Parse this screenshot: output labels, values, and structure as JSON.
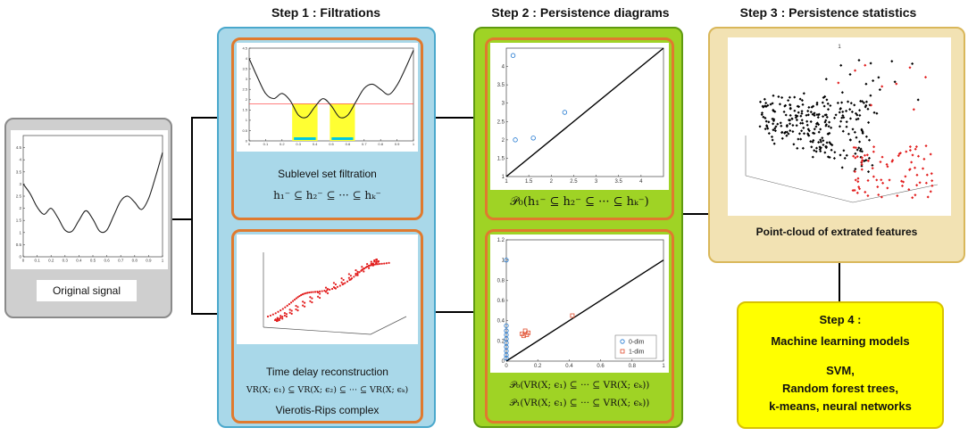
{
  "steps": {
    "step1_title": "Step 1 : Filtrations",
    "step2_title": "Step 2 : Persistence diagrams",
    "step3_title": "Step 3 : Persistence statistics"
  },
  "original": {
    "label": "Original signal"
  },
  "sublevel": {
    "label": "Sublevel set filtration",
    "formula": "h₁⁻ ⊆ h₂⁻ ⊆ ··· ⊆ hₖ⁻"
  },
  "timedelay": {
    "label": "Time delay reconstruction",
    "formula": "VR(X; ϵ₁) ⊆ VR(X; ϵ₂) ⊆ ··· ⊆ VR(X; ϵₖ)",
    "sublabel": "Vierotis-Rips complex"
  },
  "pd0": {
    "formula": "𝒫₀(h₁⁻ ⊆ h₂⁻ ⊆ ··· ⊆ hₖ⁻)"
  },
  "pd1": {
    "formula0": "𝒫₀(VR(X; ϵ₁) ⊆ ··· ⊆ VR(X; ϵₖ))",
    "formula1": "𝒫₁(VR(X; ϵ₁) ⊆ ··· ⊆ VR(X; ϵₖ))",
    "legend": [
      "0-dim",
      "1-dim"
    ]
  },
  "pointcloud": {
    "label": "Point-cloud of extrated features",
    "plot_title": "1"
  },
  "step4": {
    "title": "Step 4 :",
    "subtitle": "Machine learning models",
    "lines": [
      "SVM,",
      "Random forest trees,",
      "k-means, neural networks"
    ]
  },
  "colors": {
    "gray_panel": "#cfcfcf",
    "blue_panel": "#a9d8e9",
    "green_panel": "#9fd325",
    "tan_panel": "#f2e2b3",
    "yellow_panel": "#ffff00",
    "orange_border": "#e07a2e",
    "highlight_yellow": "#ffff33"
  },
  "chart_data": [
    {
      "type": "line",
      "name": "original-signal",
      "xlim": [
        0,
        1
      ],
      "ylim": [
        0,
        5
      ],
      "xticks": [
        "0",
        "0.1",
        "0.2",
        "0.3",
        "0.4",
        "0.5",
        "0.6",
        "0.7",
        "0.8",
        "0.9",
        "1"
      ],
      "yticks": [
        "0",
        "0.5",
        "1",
        "1.5",
        "2",
        "2.5",
        "3",
        "3.5",
        "4",
        "4.5"
      ],
      "x": [
        0,
        0.05,
        0.1,
        0.15,
        0.2,
        0.25,
        0.3,
        0.35,
        0.4,
        0.45,
        0.5,
        0.55,
        0.6,
        0.65,
        0.7,
        0.75,
        0.8,
        0.85,
        0.9,
        0.95,
        1
      ],
      "y": [
        3.0,
        2.6,
        2.05,
        1.75,
        2.0,
        1.6,
        1.1,
        1.05,
        1.5,
        1.9,
        1.55,
        1.05,
        1.1,
        1.7,
        2.3,
        2.5,
        2.25,
        1.95,
        2.4,
        3.3,
        4.3
      ]
    },
    {
      "type": "line",
      "name": "sublevel-signal",
      "xlim": [
        0,
        1
      ],
      "ylim": [
        0,
        4.5
      ],
      "xticks": [
        "0",
        "0.1",
        "0.2",
        "0.3",
        "0.4",
        "0.5",
        "0.6",
        "0.7",
        "0.8",
        "0.9",
        "1"
      ],
      "yticks": [
        "0",
        "0.5",
        "1",
        "1.5",
        "2",
        "2.5",
        "3",
        "3.5",
        "4",
        "4.5"
      ],
      "threshold": 1.8,
      "x": [
        0,
        0.05,
        0.1,
        0.15,
        0.2,
        0.25,
        0.3,
        0.35,
        0.4,
        0.45,
        0.5,
        0.55,
        0.6,
        0.65,
        0.7,
        0.75,
        0.8,
        0.85,
        0.9,
        0.95,
        1
      ],
      "y": [
        4.0,
        3.1,
        2.3,
        2.05,
        2.3,
        1.95,
        1.25,
        1.15,
        1.65,
        2.05,
        1.7,
        1.15,
        1.25,
        1.9,
        2.55,
        2.75,
        2.5,
        2.25,
        2.7,
        3.5,
        4.4
      ]
    },
    {
      "type": "scatter",
      "name": "persistence-diagram-0",
      "xlim": [
        1,
        4.5
      ],
      "ylim": [
        1,
        4.5
      ],
      "xticks": [
        "1",
        "1.5",
        "2",
        "2.5",
        "3",
        "3.5",
        "4"
      ],
      "yticks": [
        "1",
        "1.5",
        "2",
        "2.5",
        "3",
        "3.5",
        "4"
      ],
      "points": [
        [
          1.15,
          4.3
        ],
        [
          1.2,
          2.0
        ],
        [
          1.6,
          2.05
        ],
        [
          2.3,
          2.75
        ]
      ]
    },
    {
      "type": "scatter",
      "name": "persistence-diagram-1",
      "xlim": [
        0,
        1
      ],
      "ylim": [
        0,
        1.2
      ],
      "xticks": [
        "0",
        "0.2",
        "0.4",
        "0.6",
        "0.8",
        "1"
      ],
      "yticks": [
        "0",
        "0.2",
        "0.4",
        "0.6",
        "0.8",
        "1",
        "1.2"
      ],
      "series": [
        {
          "name": "0-dim",
          "points": [
            [
              0,
              1.0
            ],
            [
              0,
              0.35
            ],
            [
              0,
              0.3
            ],
            [
              0,
              0.26
            ],
            [
              0,
              0.22
            ],
            [
              0,
              0.18
            ],
            [
              0,
              0.14
            ],
            [
              0,
              0.1
            ],
            [
              0,
              0.06
            ],
            [
              0,
              0.03
            ]
          ]
        },
        {
          "name": "1-dim",
          "points": [
            [
              0.1,
              0.27
            ],
            [
              0.11,
              0.25
            ],
            [
              0.12,
              0.3
            ],
            [
              0.13,
              0.26
            ],
            [
              0.14,
              0.28
            ],
            [
              0.42,
              0.45
            ]
          ]
        }
      ]
    }
  ]
}
